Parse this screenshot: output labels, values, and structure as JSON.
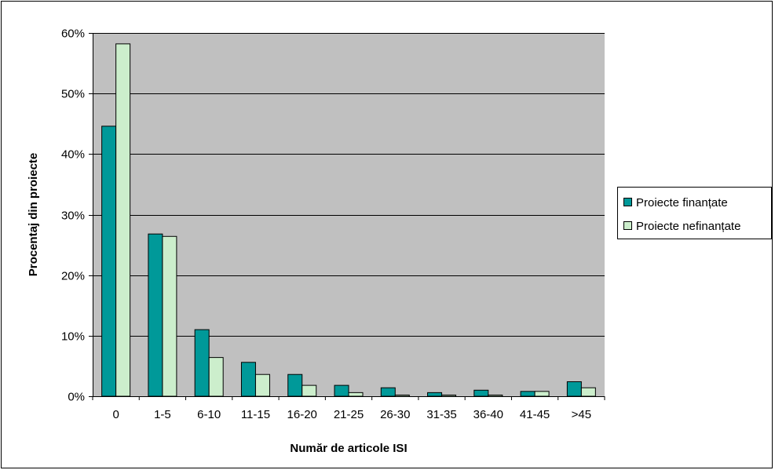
{
  "chart_data": {
    "type": "bar",
    "categories": [
      "0",
      "1-5",
      "6-10",
      "11-15",
      "16-20",
      "21-25",
      "26-30",
      "31-35",
      "36-40",
      "41-45",
      ">45"
    ],
    "series": [
      {
        "name": "Proiecte finanțate",
        "values": [
          44.6,
          26.8,
          11.0,
          5.6,
          3.6,
          1.8,
          1.4,
          0.6,
          1.0,
          0.8,
          2.4
        ],
        "color": "#009999"
      },
      {
        "name": "Proiecte nefinanțate",
        "values": [
          58.2,
          26.4,
          6.4,
          3.6,
          1.8,
          0.6,
          0.2,
          0.2,
          0.2,
          0.8,
          1.4
        ],
        "color": "#CCEECC"
      }
    ],
    "xlabel": "Număr de articole ISI",
    "ylabel": "Procentaj din proiecte",
    "ylim": [
      0,
      60
    ],
    "ytick_values": [
      0,
      10,
      20,
      30,
      40,
      50,
      60
    ],
    "ytick_labels": [
      "0%",
      "10%",
      "20%",
      "30%",
      "40%",
      "50%",
      "60%"
    ],
    "grid": true,
    "plot_background": "#C0C0C0",
    "legend_position": "right"
  }
}
